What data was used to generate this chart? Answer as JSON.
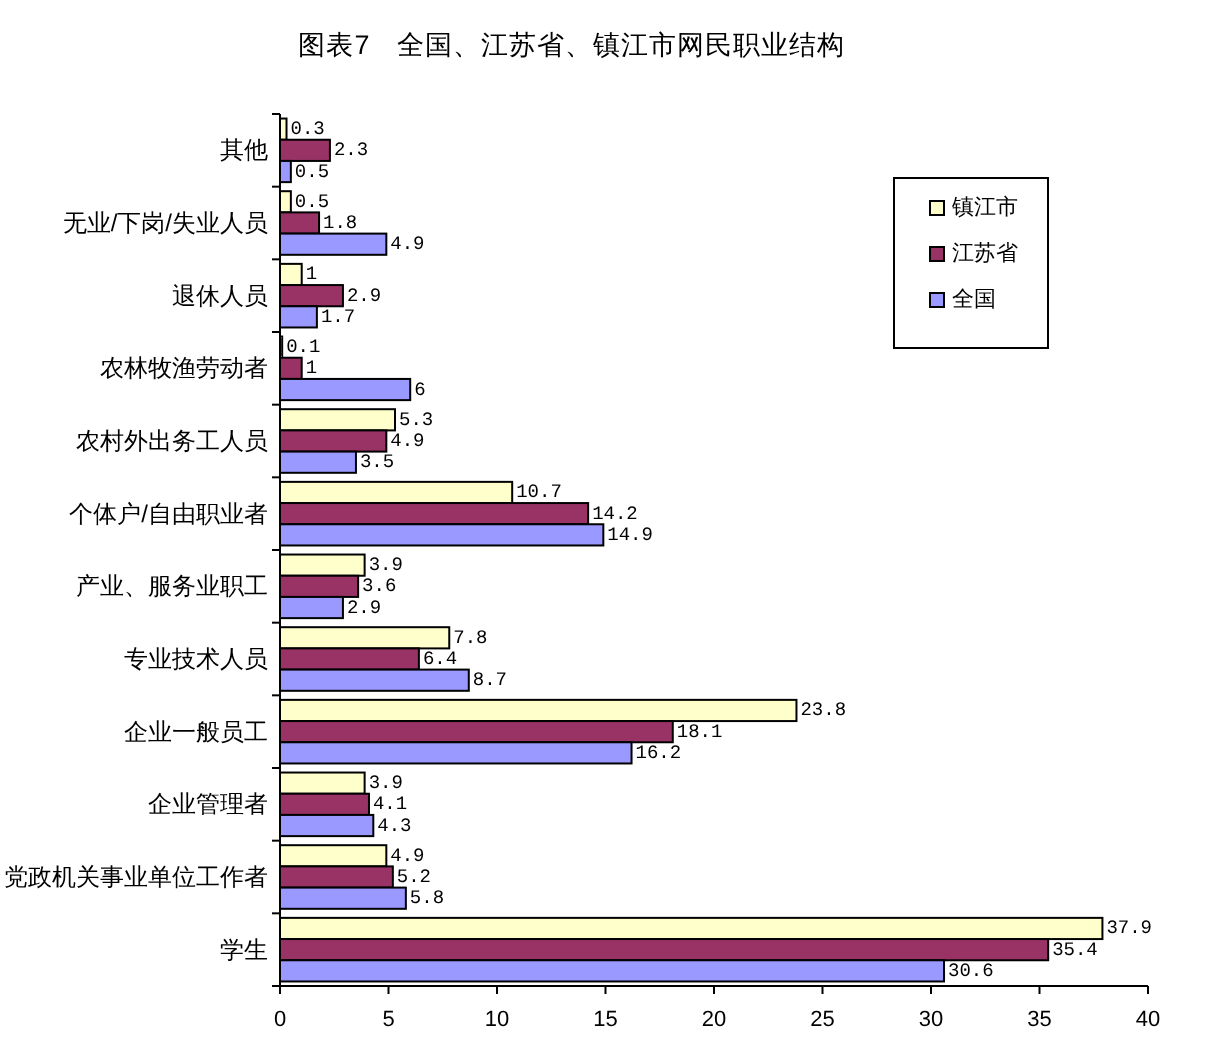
{
  "chart_data": {
    "type": "bar",
    "orientation": "horizontal",
    "title": "图表7　全国、江苏省、镇江市网民职业结构",
    "categories": [
      "其他",
      "无业/下岗/失业人员",
      "退休人员",
      "农林牧渔劳动者",
      "农村外出务工人员",
      "个体户/自由职业者",
      "产业、服务业职工",
      "专业技术人员",
      "企业一般员工",
      "企业管理者",
      "党政机关事业单位工作者",
      "学生"
    ],
    "series": [
      {
        "name": "镇江市",
        "color": "#ffffcc",
        "values": [
          0.3,
          0.5,
          1,
          0.1,
          5.3,
          10.7,
          3.9,
          7.8,
          23.8,
          3.9,
          4.9,
          37.9
        ]
      },
      {
        "name": "江苏省",
        "color": "#993366",
        "values": [
          2.3,
          1.8,
          2.9,
          1,
          4.9,
          14.2,
          3.6,
          6.4,
          18.1,
          4.1,
          5.2,
          35.4
        ]
      },
      {
        "name": "全国",
        "color": "#9999ff",
        "values": [
          0.5,
          4.9,
          1.7,
          6,
          3.5,
          14.9,
          2.9,
          8.7,
          16.2,
          4.3,
          5.8,
          30.6
        ]
      }
    ],
    "xlim": [
      0,
      40
    ],
    "xticks": [
      0,
      5,
      10,
      15,
      20,
      25,
      30,
      35,
      40
    ],
    "data_labels": true,
    "legend": "top right"
  }
}
